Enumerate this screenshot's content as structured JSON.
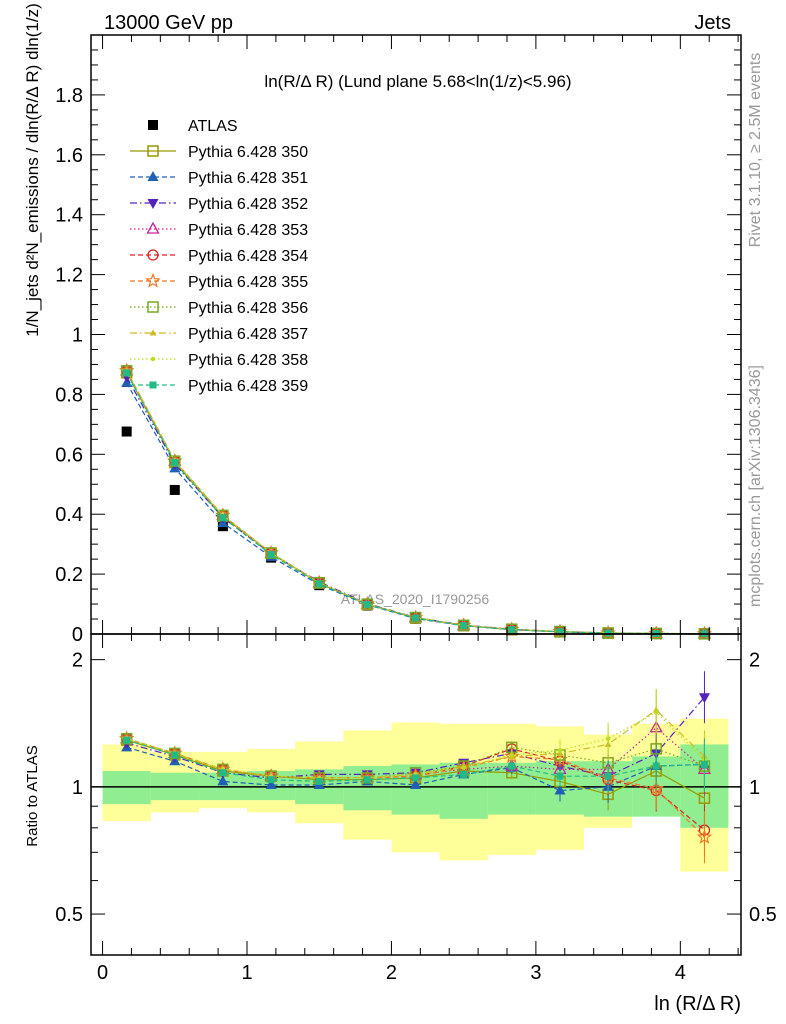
{
  "header": {
    "left": "13000 GeV pp",
    "right": "Jets"
  },
  "side_text": {
    "rivet": "Rivet 3.1.10, ≥ 2.5M events",
    "mcplots": "mcplots.cern.ch [arXiv:1306.3436]"
  },
  "watermark": "ATLAS_2020_I1790256",
  "colors": {
    "data": "#000000",
    "band_inner": "#90ee90",
    "band_outer": "#ffff99"
  },
  "chart_data": [
    {
      "type": "scatter",
      "title": "ln(R/Δ R) (Lund plane 5.68<ln(1/z)<5.96)",
      "ylabel": "1/N_jets d²N_emissions / dln(R/Δ R) dln(1/z)",
      "ylim": [
        0,
        2.0
      ],
      "yticks": [
        "0",
        "0.2",
        "0.4",
        "0.6",
        "0.8",
        "1",
        "1.2",
        "1.4",
        "1.6",
        "1.8"
      ],
      "x": [
        0.167,
        0.5,
        0.833,
        1.167,
        1.5,
        1.833,
        2.167,
        2.5,
        2.833,
        3.167,
        3.5,
        3.833,
        4.167
      ],
      "legend_position": "top-left",
      "series": [
        {
          "name": "ATLAS",
          "color": "#000000",
          "marker": "square-filled",
          "style": "none",
          "values": [
            0.676,
            0.481,
            0.36,
            0.255,
            0.163,
            0.095,
            0.051,
            0.026,
            0.013,
            0.007,
            0.003,
            0.0015,
            0.0007
          ]
        },
        {
          "name": "Pythia 6.428 350",
          "color": "#999900",
          "marker": "square-open",
          "style": "solid",
          "ratio_errors": true,
          "ratio": [
            1.29,
            1.19,
            1.09,
            1.06,
            1.04,
            1.04,
            1.05,
            1.09,
            1.08,
            1.03,
            0.96,
            1.09,
            0.94
          ]
        },
        {
          "name": "Pythia 6.428 351",
          "color": "#1f5fb4",
          "marker": "triangle-up-filled",
          "style": "dashed",
          "ratio": [
            1.24,
            1.15,
            1.03,
            1.01,
            1.01,
            1.03,
            1.01,
            1.07,
            1.11,
            0.98,
            1.0,
            1.12,
            1.13
          ]
        },
        {
          "name": "Pythia 6.428 352",
          "color": "#5522bb",
          "marker": "triangle-down-filled",
          "style": "dashdot",
          "ratio": [
            1.27,
            1.18,
            1.08,
            1.05,
            1.07,
            1.07,
            1.08,
            1.14,
            1.2,
            1.12,
            1.06,
            1.2,
            1.63
          ]
        },
        {
          "name": "Pythia 6.428 353",
          "color": "#cc2299",
          "marker": "triangle-up-open",
          "style": "dotted",
          "ratio": [
            1.3,
            1.2,
            1.1,
            1.06,
            1.05,
            1.05,
            1.07,
            1.1,
            1.12,
            1.1,
            1.1,
            1.38,
            1.1
          ]
        },
        {
          "name": "Pythia 6.428 354",
          "color": "#dd2222",
          "marker": "circle-open",
          "style": "dashed",
          "ratio": [
            1.3,
            1.2,
            1.1,
            1.06,
            1.05,
            1.05,
            1.06,
            1.12,
            1.23,
            1.15,
            1.04,
            0.98,
            0.79
          ]
        },
        {
          "name": "Pythia 6.428 355",
          "color": "#ee7722",
          "marker": "star-open",
          "style": "dashed",
          "ratio": [
            1.3,
            1.2,
            1.1,
            1.06,
            1.05,
            1.05,
            1.06,
            1.11,
            1.18,
            1.16,
            1.05,
            0.99,
            0.76
          ]
        },
        {
          "name": "Pythia 6.428 356",
          "color": "#77aa22",
          "marker": "square-open",
          "style": "dotted",
          "ratio": [
            1.3,
            1.2,
            1.1,
            1.06,
            1.05,
            1.05,
            1.08,
            1.12,
            1.24,
            1.19,
            1.14,
            1.23,
            1.12
          ]
        },
        {
          "name": "Pythia 6.428 357",
          "color": "#ccbb22",
          "marker": "tri-small",
          "style": "dashdot",
          "ratio": [
            1.3,
            1.2,
            1.1,
            1.06,
            1.05,
            1.05,
            1.07,
            1.12,
            1.18,
            1.2,
            1.26,
            1.52,
            1.18
          ]
        },
        {
          "name": "Pythia 6.428 358",
          "color": "#bbdd22",
          "marker": "dot-small",
          "style": "dotted",
          "ratio": [
            1.3,
            1.2,
            1.1,
            1.06,
            1.05,
            1.05,
            1.07,
            1.11,
            1.19,
            1.22,
            1.3,
            1.5,
            1.16
          ]
        },
        {
          "name": "Pythia 6.428 359",
          "color": "#22bb88",
          "marker": "square-filled-small",
          "style": "dashed",
          "ratio": [
            1.29,
            1.19,
            1.08,
            1.04,
            1.03,
            1.04,
            1.05,
            1.07,
            1.12,
            1.06,
            1.06,
            1.12,
            1.13
          ]
        }
      ]
    },
    {
      "type": "scatter",
      "xlabel": "ln (R/Δ R)",
      "ylabel": "Ratio to ATLAS",
      "ylim": [
        0.4,
        2.3
      ],
      "ytick_labels": [
        "0.5",
        "1",
        "2"
      ],
      "ytick_values": [
        0.5,
        1,
        2
      ],
      "xlim": [
        -0.08,
        4.42
      ],
      "xticks": [
        "0",
        "1",
        "2",
        "3",
        "4"
      ],
      "bin_edges": [
        0,
        0.333,
        0.667,
        1,
        1.333,
        1.667,
        2,
        2.333,
        2.667,
        3,
        3.333,
        3.667,
        4,
        4.333
      ],
      "band_inner": [
        [
          0.91,
          1.09
        ],
        [
          0.93,
          1.08
        ],
        [
          0.93,
          1.08
        ],
        [
          0.93,
          1.09
        ],
        [
          0.91,
          1.1
        ],
        [
          0.88,
          1.12
        ],
        [
          0.86,
          1.13
        ],
        [
          0.84,
          1.14
        ],
        [
          0.86,
          1.14
        ],
        [
          0.86,
          1.15
        ],
        [
          0.85,
          1.15
        ],
        [
          0.85,
          1.18
        ],
        [
          0.8,
          1.26
        ]
      ],
      "band_outer": [
        [
          0.83,
          1.26
        ],
        [
          0.87,
          1.21
        ],
        [
          0.89,
          1.21
        ],
        [
          0.87,
          1.23
        ],
        [
          0.82,
          1.28
        ],
        [
          0.75,
          1.36
        ],
        [
          0.7,
          1.42
        ],
        [
          0.67,
          1.41
        ],
        [
          0.69,
          1.41
        ],
        [
          0.71,
          1.39
        ],
        [
          0.8,
          1.33
        ],
        [
          0.91,
          1.41
        ],
        [
          0.63,
          1.45
        ]
      ]
    }
  ]
}
